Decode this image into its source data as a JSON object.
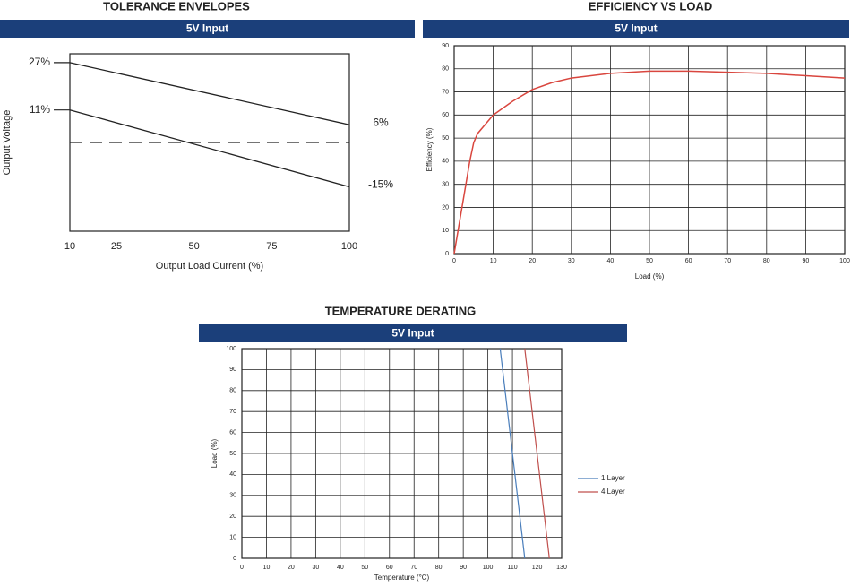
{
  "chart_data": [
    {
      "type": "line",
      "title": "TOLERANCE ENVELOPES",
      "subtitle": "5V Input",
      "x_label": "Output Load Current (%)",
      "y_label": "Output Voltage",
      "xlim": [
        10,
        100
      ],
      "xticks": [
        10,
        25,
        50,
        75,
        100
      ],
      "ylim": [
        -30,
        30
      ],
      "grid": false,
      "reference_line": 0,
      "series": [
        {
          "color": "#222222",
          "x": [
            10,
            100
          ],
          "values": [
            27,
            6
          ],
          "value_labels": [
            "27%",
            "6%"
          ]
        },
        {
          "color": "#222222",
          "x": [
            10,
            100
          ],
          "values": [
            11,
            -15
          ],
          "value_labels": [
            "11%",
            "-15%"
          ]
        }
      ]
    },
    {
      "type": "line",
      "title": "EFFICIENCY VS LOAD",
      "subtitle": "5V Input",
      "x_label": "Load  (%)",
      "y_label": "Efficiency  (%)",
      "xlim": [
        0,
        100
      ],
      "xticks": [
        0,
        10,
        20,
        30,
        40,
        50,
        60,
        70,
        80,
        90,
        100
      ],
      "ylim": [
        0,
        90
      ],
      "yticks": [
        0,
        10,
        20,
        30,
        40,
        50,
        60,
        70,
        80,
        90
      ],
      "grid": true,
      "series": [
        {
          "color": "#d9463e",
          "x": [
            0,
            2,
            4,
            5,
            6,
            8,
            10,
            15,
            20,
            25,
            30,
            40,
            50,
            60,
            70,
            80,
            90,
            100
          ],
          "values": [
            0,
            20,
            40,
            48,
            52,
            56,
            60,
            66,
            71,
            74,
            76,
            78,
            79,
            79,
            78.5,
            78,
            77,
            76
          ]
        }
      ]
    },
    {
      "type": "line",
      "title": "TEMPERATURE DERATING",
      "subtitle": "5V Input",
      "x_label": "Temperature (°C)",
      "y_label": "Load  (%)",
      "xlim": [
        0,
        130
      ],
      "xticks": [
        0,
        10,
        20,
        30,
        40,
        50,
        60,
        70,
        80,
        90,
        100,
        110,
        120,
        130
      ],
      "ylim": [
        0,
        100
      ],
      "yticks": [
        0,
        10,
        20,
        30,
        40,
        50,
        60,
        70,
        80,
        90,
        100
      ],
      "grid": true,
      "legend": "right",
      "series": [
        {
          "name": "1 Layer",
          "color": "#4a7ebb",
          "x": [
            105,
            115
          ],
          "values": [
            100,
            0
          ]
        },
        {
          "name": "4 Layer",
          "color": "#c0504d",
          "x": [
            115,
            125
          ],
          "values": [
            100,
            0
          ]
        }
      ]
    }
  ]
}
